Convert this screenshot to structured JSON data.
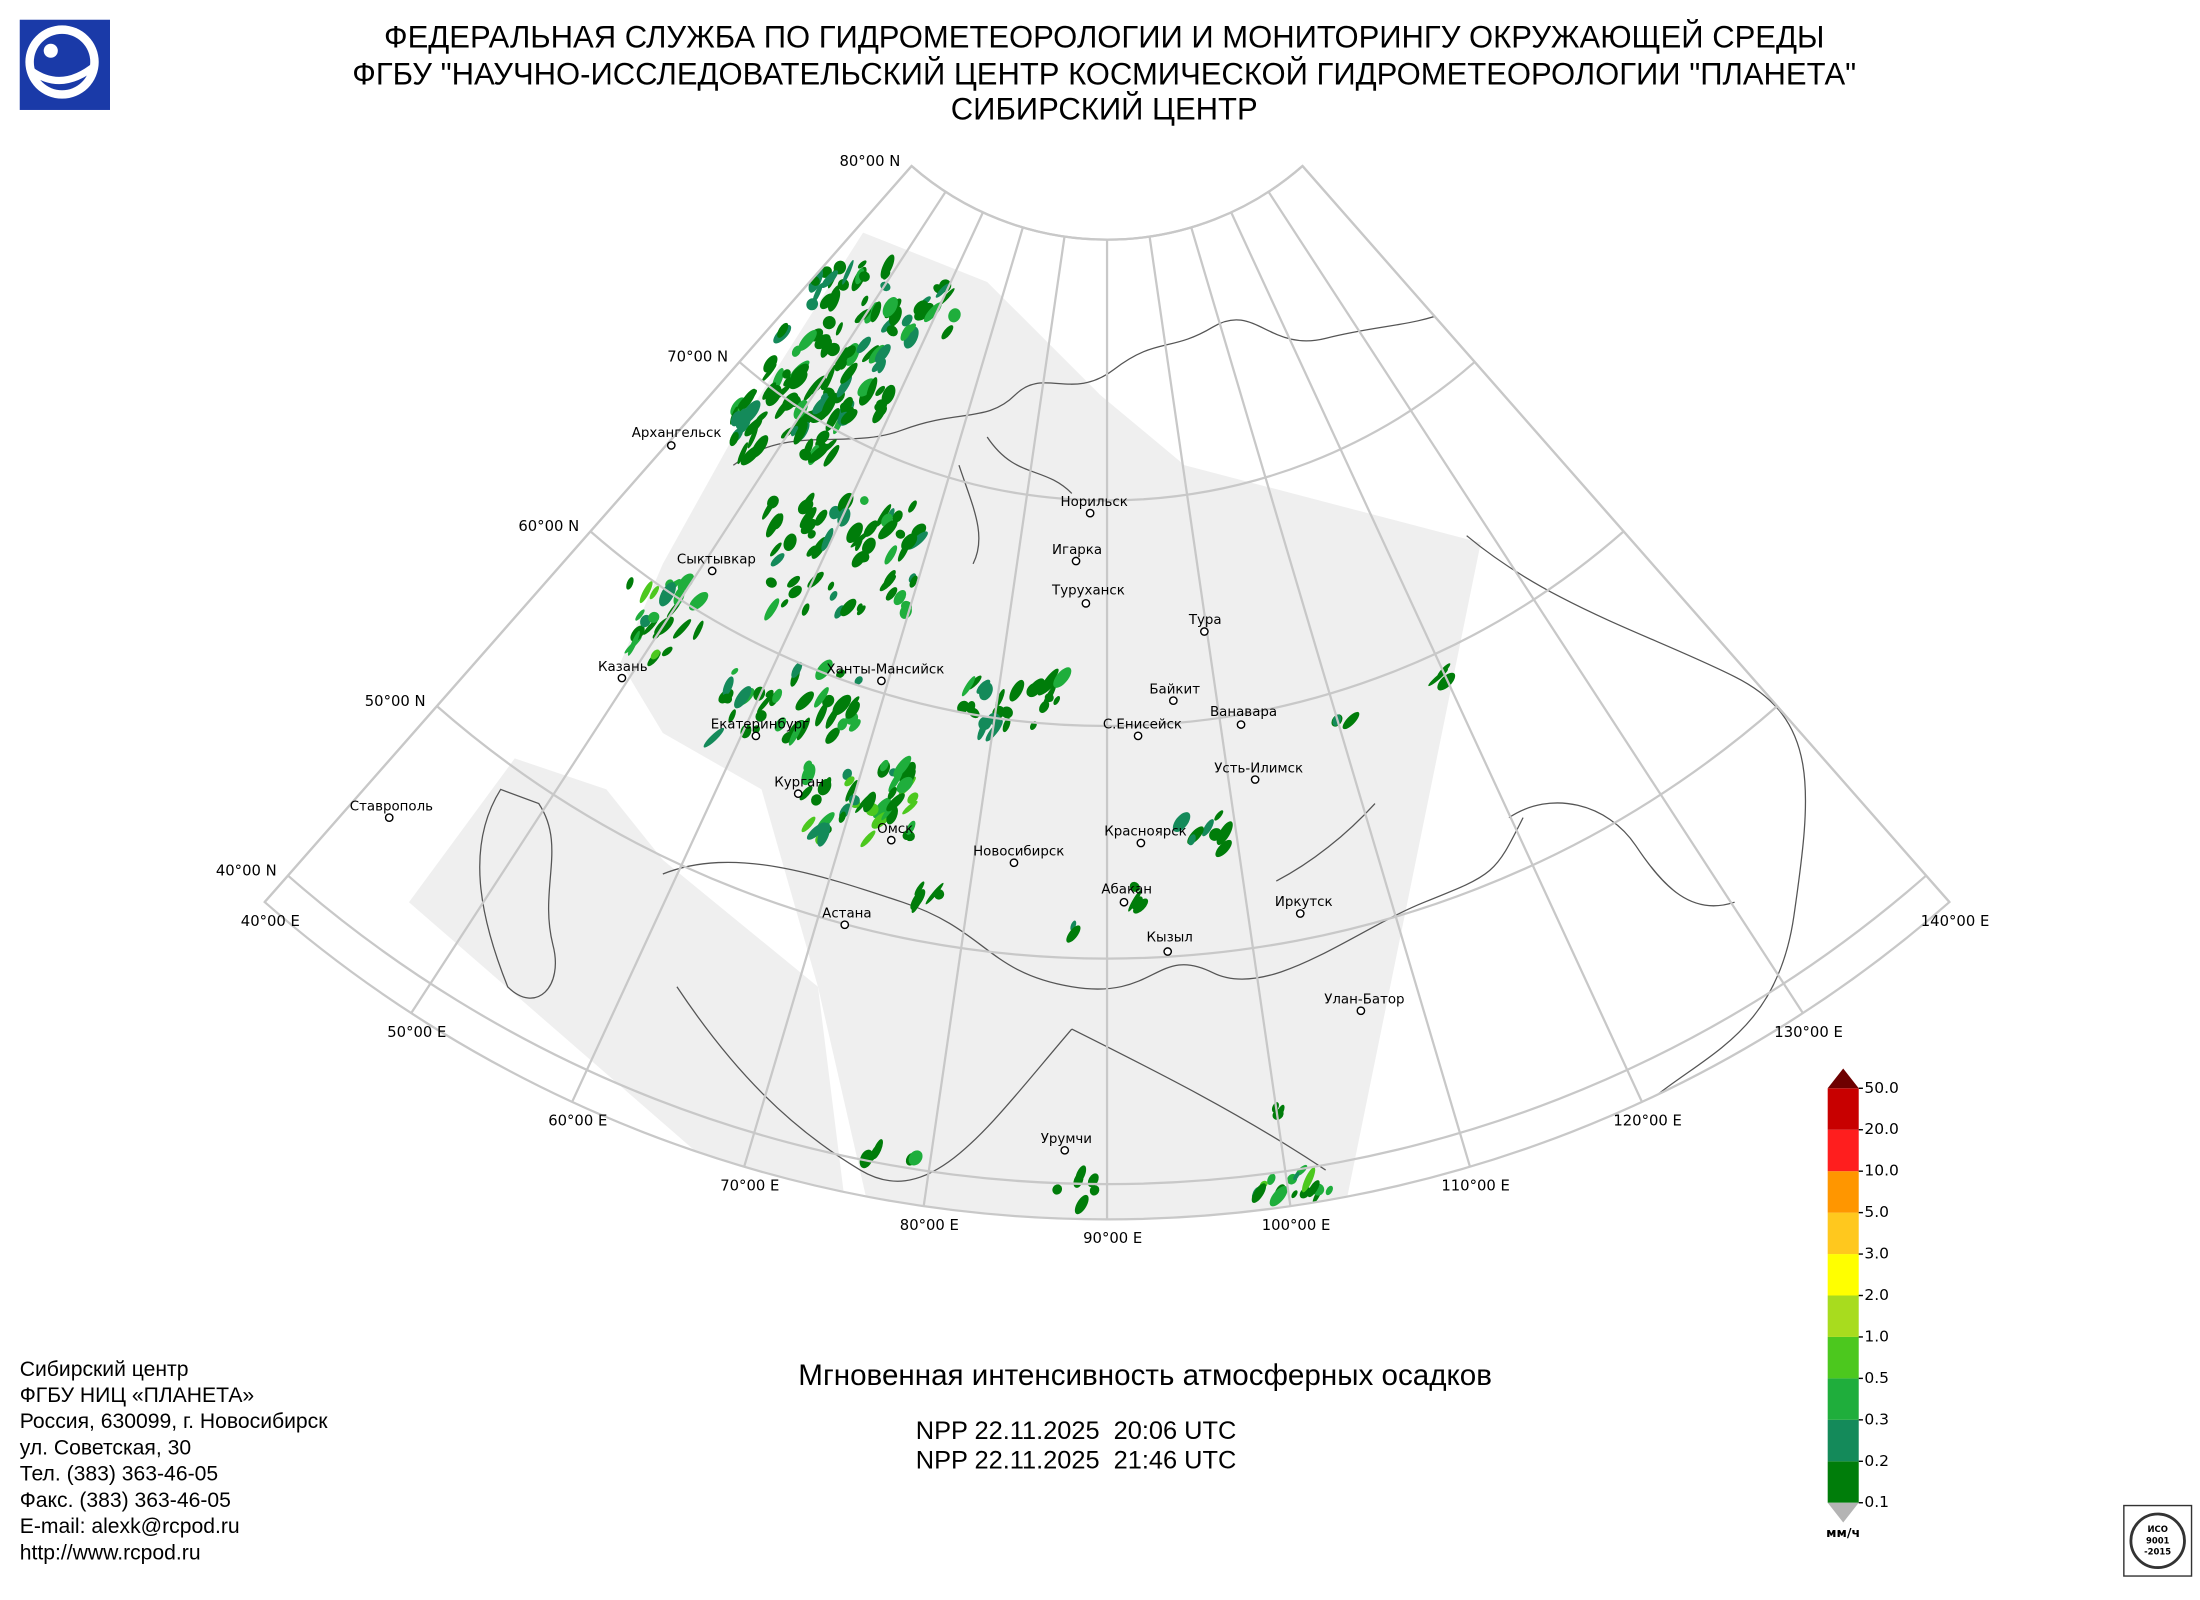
{
  "header": {
    "lines": [
      "ФЕДЕРАЛЬНАЯ СЛУЖБА ПО ГИДРОМЕТЕОРОЛОГИИ И МОНИТОРИНГУ ОКРУЖАЮЩЕЙ СРЕДЫ",
      "ФГБУ \"НАУЧНО-ИССЛЕДОВАТЕЛЬСКИЙ ЦЕНТР КОСМИЧЕСКОЙ ГИДРОМЕТЕОРОЛОГИИ \"ПЛАНЕТА\"",
      "СИБИРСКИЙ ЦЕНТР"
    ]
  },
  "map": {
    "parallels": [
      {
        "value": 80,
        "label": "80°00 N"
      },
      {
        "value": 70,
        "label": "70°00 N"
      },
      {
        "value": 60,
        "label": "60°00 N"
      },
      {
        "value": 50,
        "label": "50°00 N"
      },
      {
        "value": 40,
        "label": "40°00 N"
      }
    ],
    "meridians": [
      {
        "value": 40,
        "label": "40°00 E"
      },
      {
        "value": 50,
        "label": "50°00 E"
      },
      {
        "value": 60,
        "label": "60°00 E"
      },
      {
        "value": 70,
        "label": "70°00 E"
      },
      {
        "value": 80,
        "label": "80°00 E"
      },
      {
        "value": 90,
        "label": "90°00 E"
      },
      {
        "value": 100,
        "label": "100°00 E"
      },
      {
        "value": 110,
        "label": "110°00 E"
      },
      {
        "value": 120,
        "label": "120°00 E"
      },
      {
        "value": 130,
        "label": "130°00 E"
      },
      {
        "value": 140,
        "label": "140°00 E"
      }
    ],
    "cities": [
      "Архангельск",
      "Сыктывкар",
      "Казань",
      "Екатеринбург",
      "Ханты-Мансийск",
      "Курган",
      "Омск",
      "Астана",
      "Новосибирск",
      "Ставрополь",
      "Норильск",
      "Игарка",
      "Туруханск",
      "Тура",
      "Байкит",
      "Ванавара",
      "С.Енисейск",
      "Усть-Илимск",
      "Красноярск",
      "Абакан",
      "Кызыл",
      "Иркутск",
      "Улан-Батор",
      "Урумчи"
    ]
  },
  "legend": {
    "ticks": [
      0.1,
      0.2,
      0.3,
      0.5,
      {
        "value": 1,
        "label": "1.0"
      },
      {
        "value": 2,
        "label": "2.0"
      },
      {
        "value": 3,
        "label": "3.0"
      },
      {
        "value": 5,
        "label": "5.0"
      },
      {
        "value": 10,
        "label": "10.0"
      },
      {
        "value": 20,
        "label": "20.0"
      },
      {
        "value": 50,
        "label": "50.0"
      }
    ],
    "colors": [
      "#007d0a",
      "#148a5a",
      "#1fae3c",
      "#4cc81e",
      "#a8dc1e",
      "#ffff00",
      "#ffc81e",
      "#ff9600",
      "#ff1e1e",
      "#c80000"
    ],
    "over_color": "#6e0000",
    "under_color": "#b4b4b4",
    "unit": "мм/ч"
  },
  "product": {
    "title": "Мгновенная интенсивность атмосферных осадков",
    "passes": [
      "NPP 22.11.2025  20:06 UTC",
      "NPP 22.11.2025  21:46 UTC"
    ]
  },
  "footer": {
    "lines": [
      "Сибирский центр",
      "ФГБУ НИЦ «ПЛАНЕТА»",
      "Россия, 630099, г. Новосибирск",
      "ул. Советская, 30",
      "Тел. (383) 363-46-05",
      "Факс. (383) 363-46-05",
      "E-mail: alexk@rcpod.ru",
      "http://www.rcpod.ru"
    ]
  },
  "badge": {
    "lines": [
      "ИСО",
      "9001",
      "-2015"
    ]
  }
}
